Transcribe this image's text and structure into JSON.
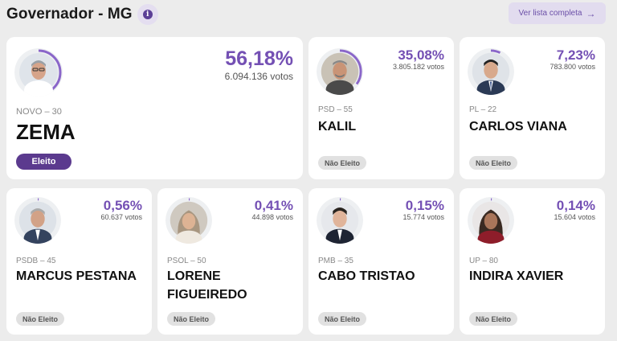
{
  "header": {
    "title": "Governador - MG",
    "info_icon": "info-icon",
    "list_button_label": "Ver lista completa",
    "list_button_icon": "arrow-right-icon"
  },
  "colors": {
    "accent": "#7450b4",
    "elected_badge": "#5b3a8e",
    "not_elected_badge": "#e1e1e1",
    "background": "#ececec"
  },
  "candidates": [
    {
      "name": "ZEMA",
      "party": "NOVO – 30",
      "percent": "56,18%",
      "votes": "6.094.136 votos",
      "status": "Eleito",
      "vote_share": 0.5618
    },
    {
      "name": "KALIL",
      "party": "PSD – 55",
      "percent": "35,08%",
      "votes": "3.805.182 votos",
      "status": "Não Eleito",
      "vote_share": 0.3508
    },
    {
      "name": "CARLOS VIANA",
      "party": "PL – 22",
      "percent": "7,23%",
      "votes": "783.800 votos",
      "status": "Não Eleito",
      "vote_share": 0.0723
    },
    {
      "name": "MARCUS PESTANA",
      "party": "PSDB – 45",
      "percent": "0,56%",
      "votes": "60.637 votos",
      "status": "Não Eleito",
      "vote_share": 0.0056
    },
    {
      "name": "LORENE FIGUEIREDO",
      "name_lines": [
        "LORENE",
        "FIGUEIREDO"
      ],
      "party": "PSOL – 50",
      "percent": "0,41%",
      "votes": "44.898 votos",
      "status": "Não Eleito",
      "vote_share": 0.0041
    },
    {
      "name": "CABO TRISTAO",
      "party": "PMB – 35",
      "percent": "0,15%",
      "votes": "15.774 votos",
      "status": "Não Eleito",
      "vote_share": 0.0015
    },
    {
      "name": "INDIRA XAVIER",
      "party": "UP – 80",
      "percent": "0,14%",
      "votes": "15.604 votos",
      "status": "Não Eleito",
      "vote_share": 0.0014
    }
  ]
}
